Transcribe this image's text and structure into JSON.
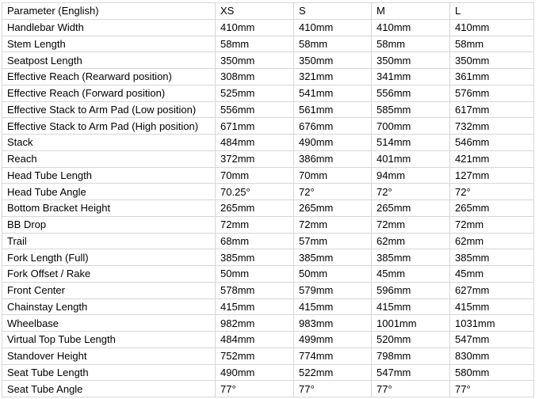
{
  "table": {
    "columns": [
      "Parameter (English)",
      "XS",
      "S",
      "M",
      "L"
    ],
    "rows": [
      {
        "parameter": "Handlebar Width",
        "values": [
          "410mm",
          "410mm",
          "410mm",
          "410mm"
        ]
      },
      {
        "parameter": "Stem Length",
        "values": [
          "58mm",
          "58mm",
          "58mm",
          "58mm"
        ]
      },
      {
        "parameter": "Seatpost Length",
        "values": [
          "350mm",
          "350mm",
          "350mm",
          "350mm"
        ]
      },
      {
        "parameter": "Effective Reach (Rearward position)",
        "values": [
          "308mm",
          "321mm",
          "341mm",
          "361mm"
        ]
      },
      {
        "parameter": "Effective Reach (Forward position)",
        "values": [
          "525mm",
          "541mm",
          "556mm",
          "576mm"
        ]
      },
      {
        "parameter": "Effective Stack to Arm Pad (Low position)",
        "values": [
          "556mm",
          "561mm",
          "585mm",
          "617mm"
        ]
      },
      {
        "parameter": "Effective Stack to Arm Pad (High position)",
        "values": [
          "671mm",
          "676mm",
          "700mm",
          "732mm"
        ]
      },
      {
        "parameter": "Stack",
        "values": [
          "484mm",
          "490mm",
          "514mm",
          "546mm"
        ]
      },
      {
        "parameter": "Reach",
        "values": [
          "372mm",
          "386mm",
          "401mm",
          "421mm"
        ]
      },
      {
        "parameter": "Head Tube Length",
        "values": [
          "70mm",
          "70mm",
          "94mm",
          "127mm"
        ]
      },
      {
        "parameter": "Head Tube Angle",
        "values": [
          "70.25°",
          "72°",
          "72°",
          "72°"
        ]
      },
      {
        "parameter": "Bottom Bracket Height",
        "values": [
          "265mm",
          "265mm",
          "265mm",
          "265mm"
        ]
      },
      {
        "parameter": "BB Drop",
        "values": [
          "72mm",
          "72mm",
          "72mm",
          "72mm"
        ]
      },
      {
        "parameter": "Trail",
        "values": [
          "68mm",
          "57mm",
          "62mm",
          "62mm"
        ]
      },
      {
        "parameter": "Fork Length (Full)",
        "values": [
          "385mm",
          "385mm",
          "385mm",
          "385mm"
        ]
      },
      {
        "parameter": "Fork Offset / Rake",
        "values": [
          "50mm",
          "50mm",
          "45mm",
          "45mm"
        ]
      },
      {
        "parameter": "Front Center",
        "values": [
          "578mm",
          "579mm",
          "596mm",
          "627mm"
        ]
      },
      {
        "parameter": "Chainstay Length",
        "values": [
          "415mm",
          "415mm",
          "415mm",
          "415mm"
        ]
      },
      {
        "parameter": "Wheelbase",
        "values": [
          "982mm",
          "983mm",
          "1001mm",
          "1031mm"
        ]
      },
      {
        "parameter": "Virtual Top Tube Length",
        "values": [
          "484mm",
          "499mm",
          "520mm",
          "547mm"
        ]
      },
      {
        "parameter": "Standover Height",
        "values": [
          "752mm",
          "774mm",
          "798mm",
          "830mm"
        ]
      },
      {
        "parameter": "Seat Tube Length",
        "values": [
          "490mm",
          "522mm",
          "547mm",
          "580mm"
        ]
      },
      {
        "parameter": "Seat Tube Angle",
        "values": [
          "77°",
          "77°",
          "77°",
          "77°"
        ]
      }
    ]
  }
}
